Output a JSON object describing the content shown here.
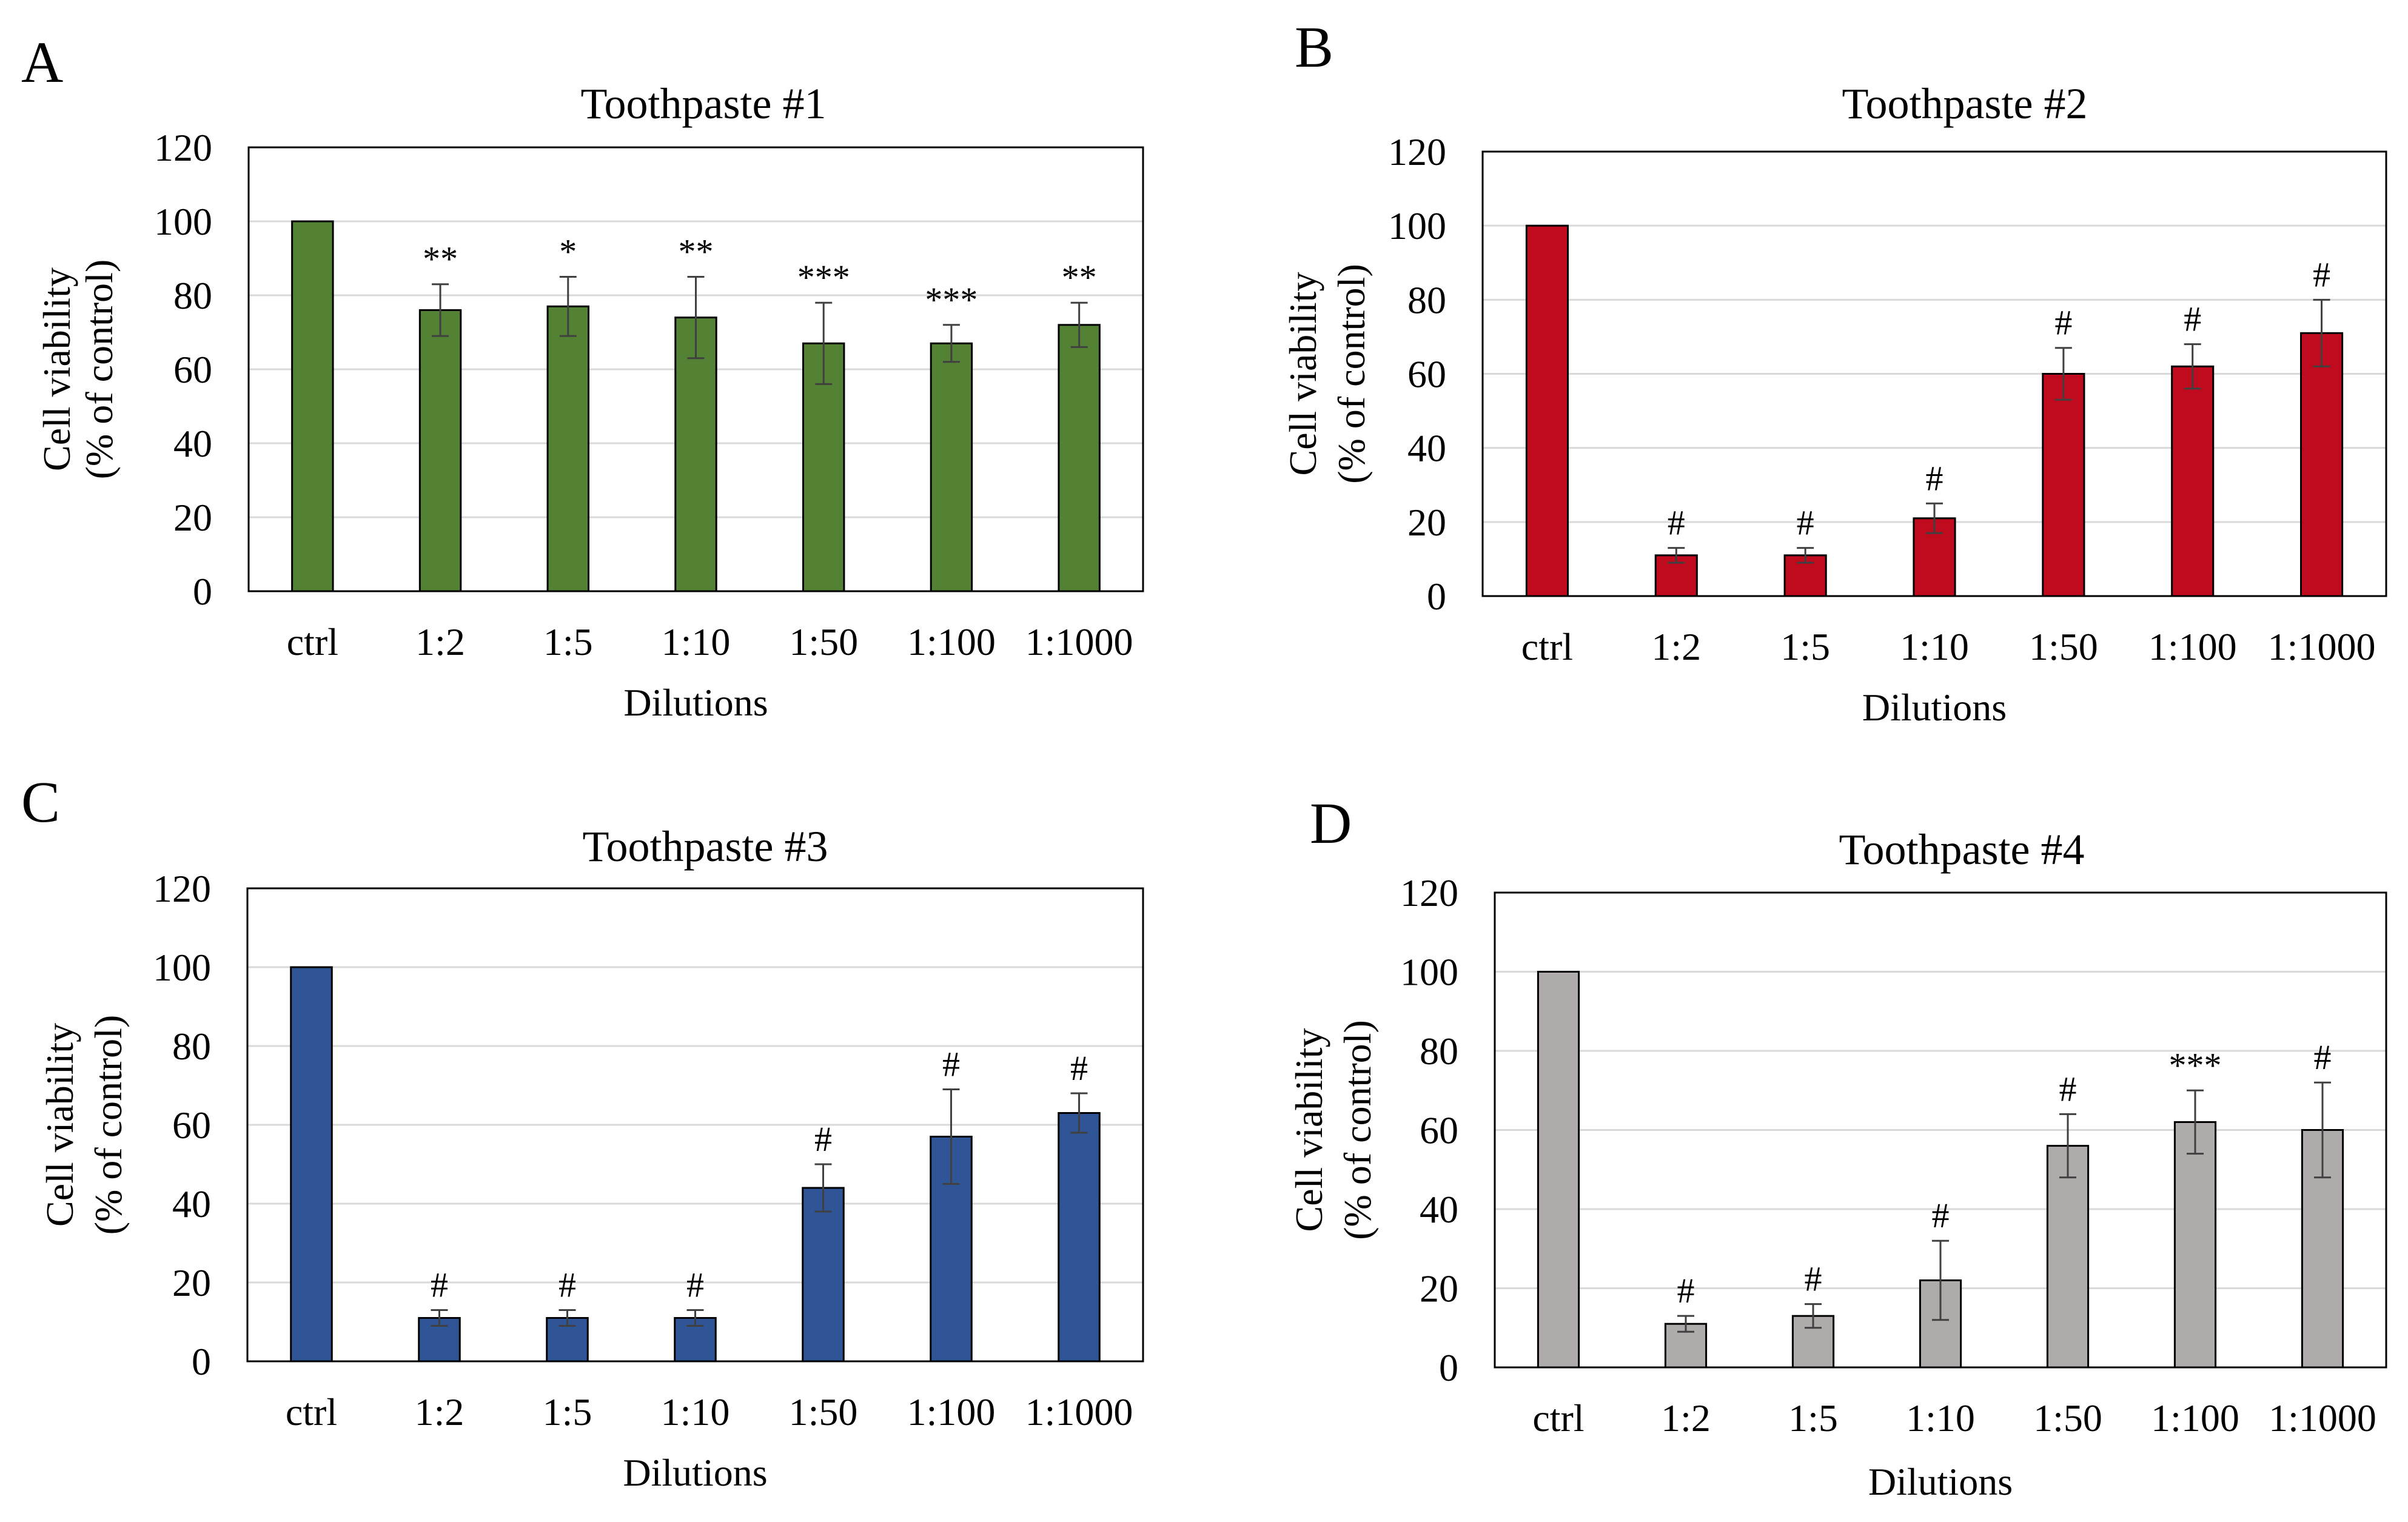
{
  "chart_data": [
    {
      "type": "bar",
      "panel_label": "A",
      "title": "Toothpaste #1",
      "xlabel": "Dilutions",
      "ylabel_line1": "Cell viability",
      "ylabel_line2": "(% of control)",
      "categories": [
        "ctrl",
        "1:2",
        "1:5",
        "1:10",
        "1:50",
        "1:100",
        "1:1000"
      ],
      "values": [
        100,
        76,
        77,
        74,
        67,
        67,
        72
      ],
      "errors": [
        0,
        7,
        8,
        11,
        11,
        5,
        6
      ],
      "significance": [
        "",
        "**",
        "*",
        "**",
        "***",
        "***",
        "**"
      ],
      "yticks": [
        0,
        20,
        40,
        60,
        80,
        100,
        120
      ],
      "ylim": [
        0,
        120
      ],
      "color": "#548235"
    },
    {
      "type": "bar",
      "panel_label": "B",
      "title": "Toothpaste #2",
      "xlabel": "Dilutions",
      "ylabel_line1": "Cell viability",
      "ylabel_line2": "(% of control)",
      "categories": [
        "ctrl",
        "1:2",
        "1:5",
        "1:10",
        "1:50",
        "1:100",
        "1:1000"
      ],
      "values": [
        100,
        11,
        11,
        21,
        60,
        62,
        71
      ],
      "errors": [
        0,
        2,
        2,
        4,
        7,
        6,
        9
      ],
      "significance": [
        "",
        "#",
        "#",
        "#",
        "#",
        "#",
        "#"
      ],
      "yticks": [
        0,
        20,
        40,
        60,
        80,
        100,
        120
      ],
      "ylim": [
        0,
        120
      ],
      "color": "#c00a1e"
    },
    {
      "type": "bar",
      "panel_label": "C",
      "title": "Toothpaste #3",
      "xlabel": "Dilutions",
      "ylabel_line1": "Cell viability",
      "ylabel_line2": "(% of control)",
      "categories": [
        "ctrl",
        "1:2",
        "1:5",
        "1:10",
        "1:50",
        "1:100",
        "1:1000"
      ],
      "values": [
        100,
        11,
        11,
        11,
        44,
        57,
        63
      ],
      "errors": [
        0,
        2,
        2,
        2,
        6,
        12,
        5
      ],
      "significance": [
        "",
        "#",
        "#",
        "#",
        "#",
        "#",
        "#"
      ],
      "yticks": [
        0,
        20,
        40,
        60,
        80,
        100,
        120
      ],
      "ylim": [
        0,
        120
      ],
      "color": "#2f5597"
    },
    {
      "type": "bar",
      "panel_label": "D",
      "title": "Toothpaste #4",
      "xlabel": "Dilutions",
      "ylabel_line1": "Cell viability",
      "ylabel_line2": "(% of control)",
      "categories": [
        "ctrl",
        "1:2",
        "1:5",
        "1:10",
        "1:50",
        "1:100",
        "1:1000"
      ],
      "values": [
        100,
        11,
        13,
        22,
        56,
        62,
        60
      ],
      "errors": [
        0,
        2,
        3,
        10,
        8,
        8,
        12
      ],
      "significance": [
        "",
        "#",
        "#",
        "#",
        "#",
        "***",
        "#"
      ],
      "yticks": [
        0,
        20,
        40,
        60,
        80,
        100,
        120
      ],
      "ylim": [
        0,
        120
      ],
      "color": "#afabab"
    }
  ]
}
